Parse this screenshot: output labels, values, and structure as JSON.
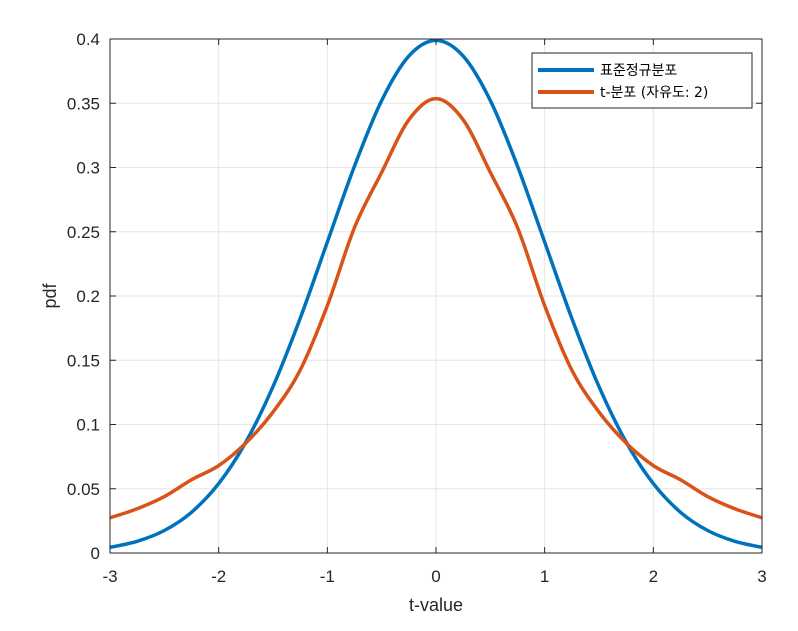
{
  "chart_data": {
    "type": "line",
    "xlabel": "t-value",
    "ylabel": "pdf",
    "xlim": [
      -3,
      3
    ],
    "ylim": [
      0,
      0.4
    ],
    "grid": true,
    "legend_position": "top-right",
    "xticks": [
      "-3",
      "-2",
      "-1",
      "0",
      "1",
      "2",
      "3"
    ],
    "yticks": [
      "0",
      "0.05",
      "0.1",
      "0.15",
      "0.2",
      "0.25",
      "0.3",
      "0.35",
      "0.4"
    ],
    "series": [
      {
        "name": "표준정규분포",
        "color": "#0072BD",
        "x": [
          -3,
          -2.75,
          -2.5,
          -2.25,
          -2,
          -1.75,
          -1.5,
          -1.25,
          -1,
          -0.75,
          -0.5,
          -0.25,
          0,
          0.25,
          0.5,
          0.75,
          1,
          1.25,
          1.5,
          1.75,
          2,
          2.25,
          2.5,
          2.75,
          3
        ],
        "y": [
          0.0044,
          0.0091,
          0.0175,
          0.0317,
          0.054,
          0.0863,
          0.1295,
          0.1826,
          0.242,
          0.3011,
          0.3521,
          0.3867,
          0.3989,
          0.3867,
          0.3521,
          0.3011,
          0.242,
          0.1826,
          0.1295,
          0.0863,
          0.054,
          0.0317,
          0.0175,
          0.0091,
          0.0044
        ]
      },
      {
        "name": "t-분포 (자유도: 2)",
        "color": "#D95319",
        "x": [
          -3,
          -2.75,
          -2.5,
          -2.25,
          -2,
          -1.75,
          -1.5,
          -1.25,
          -1,
          -0.75,
          -0.5,
          -0.25,
          0,
          0.25,
          0.5,
          0.75,
          1,
          1.25,
          1.5,
          1.75,
          2,
          2.25,
          2.5,
          2.75,
          3
        ],
        "y": [
          0.0274,
          0.0344,
          0.0439,
          0.057,
          0.068,
          0.0856,
          0.1097,
          0.1423,
          0.1925,
          0.2533,
          0.2962,
          0.3371,
          0.3536,
          0.3371,
          0.2962,
          0.2533,
          0.1925,
          0.1423,
          0.1097,
          0.0856,
          0.068,
          0.057,
          0.0439,
          0.0344,
          0.0274
        ]
      }
    ]
  }
}
